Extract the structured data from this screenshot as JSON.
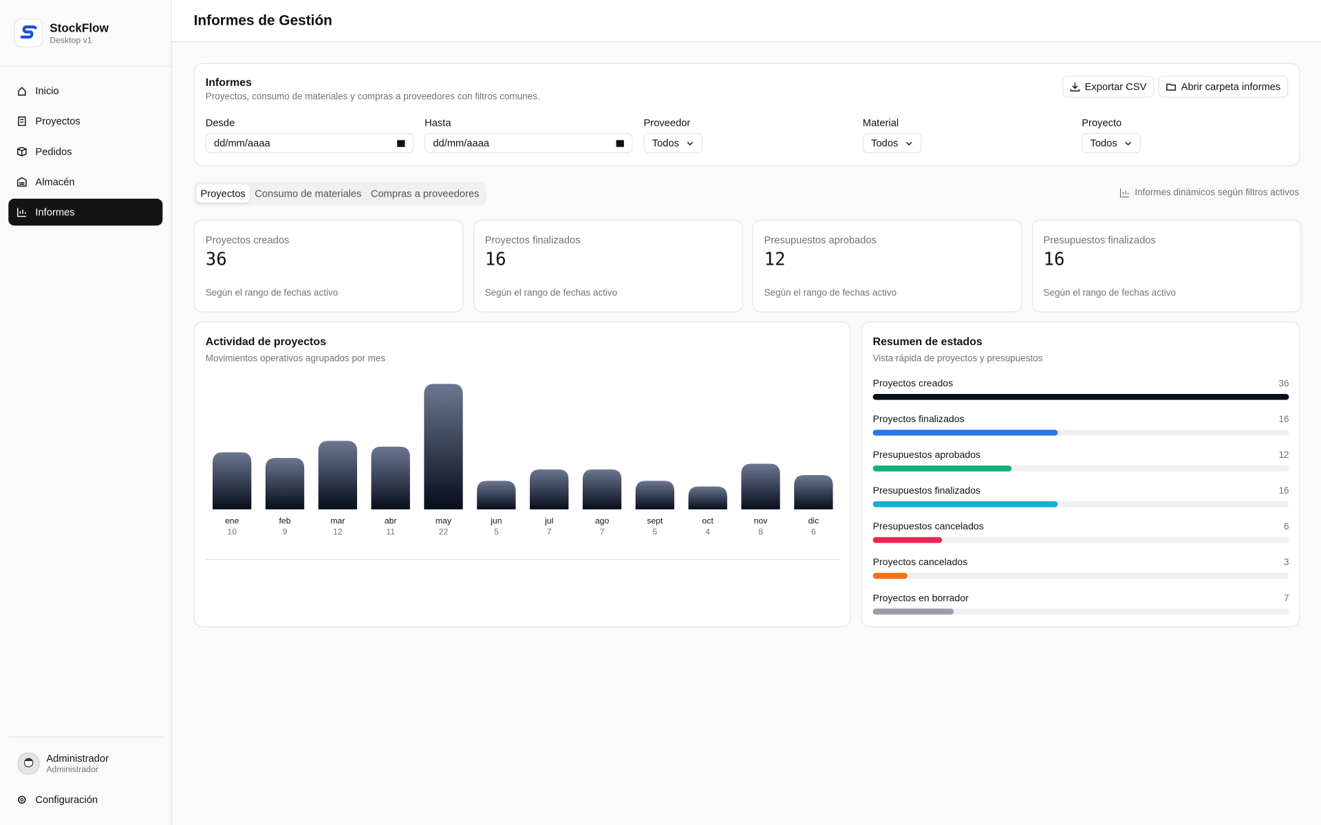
{
  "app": {
    "name": "StockFlow",
    "version": "Desktop v1"
  },
  "nav": [
    "Inicio",
    "Proyectos",
    "Pedidos",
    "Almacén",
    "Informes"
  ],
  "user": {
    "name": "Administrador",
    "role": "Administrador"
  },
  "settings": "Configuración",
  "header": {
    "title": "Informes de Gestión"
  },
  "filters": {
    "title": "Informes",
    "subtitle": "Proyectos, consumo de materiales y compras a proveedores con filtros comunes.",
    "buttons": [
      "Exportar CSV",
      "Abrir carpeta informes"
    ],
    "fields": [
      {
        "label": "Desde",
        "value": "dd/mm/aaaa"
      },
      {
        "label": "Hasta",
        "value": "dd/mm/aaaa"
      },
      {
        "label": "Proveedor",
        "value": "Todos"
      },
      {
        "label": "Material",
        "value": "Todos"
      },
      {
        "label": "Proyecto",
        "value": "Todos"
      }
    ]
  },
  "tabs": [
    "Proyectos",
    "Consumo de materiales",
    "Compras a proveedores"
  ],
  "tabs_note": "Informes dinámicos según filtros activos",
  "kpis": [
    {
      "label": "Proyectos creados",
      "value": 36,
      "caption": "Según el rango de fechas activo"
    },
    {
      "label": "Proyectos finalizados",
      "value": 16,
      "caption": "Según el rango de fechas activo"
    },
    {
      "label": "Presupuestos aprobados",
      "value": 12,
      "caption": "Según el rango de fechas activo"
    },
    {
      "label": "Presupuestos finalizados",
      "value": 16,
      "caption": "Según el rango de fechas activo"
    }
  ],
  "chart_data": [
    {
      "type": "bar",
      "orientation": "vertical",
      "title": "Actividad de proyectos",
      "subtitle": "Movimientos operativos agrupados por mes",
      "categories": [
        "ene",
        "feb",
        "mar",
        "abr",
        "may",
        "jun",
        "jul",
        "ago",
        "sept",
        "oct",
        "nov",
        "dic"
      ],
      "values": [
        10,
        9,
        12,
        11,
        22,
        5,
        7,
        7,
        5,
        4,
        8,
        6
      ],
      "color": [
        "#6b7791",
        "#070d1c"
      ]
    },
    {
      "type": "bar",
      "orientation": "horizontal",
      "title": "Resumen de estados",
      "subtitle": "Vista rápida de proyectos y presupuestos",
      "categories": [
        "Proyectos creados",
        "Proyectos finalizados",
        "Presupuestos aprobados",
        "Presupuestos finalizados",
        "Presupuestos cancelados",
        "Proyectos cancelados",
        "Proyectos en borrador"
      ],
      "values": [
        36,
        16,
        12,
        16,
        6,
        3,
        7
      ],
      "colors": [
        "#0a0f1f",
        "#2f74eb",
        "#12b07b",
        "#10b0d2",
        "#ef2453",
        "#f7700f",
        "#9c9ca8"
      ],
      "xlim": [
        0,
        36
      ]
    }
  ]
}
